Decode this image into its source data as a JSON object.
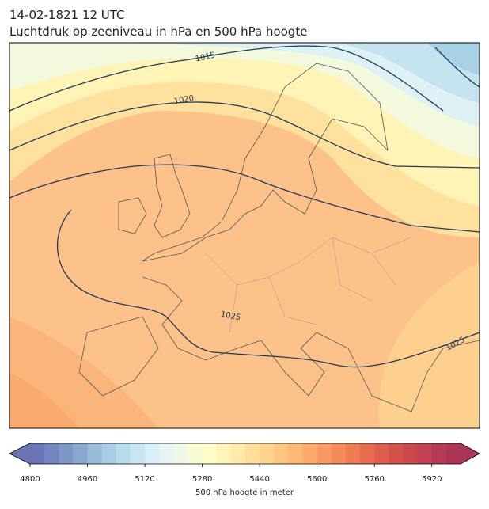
{
  "title": [
    "14-02-1821 12 UTC",
    "Luchtdruk op zeeniveau in hPa en 500 hPa hoogte"
  ],
  "map": {
    "contour_labels": [
      "1015",
      "1020",
      "1025",
      "1025"
    ]
  },
  "colorbar": {
    "lim": [
      4800,
      6000
    ],
    "ticks": [
      4800,
      4960,
      5120,
      5280,
      5440,
      5600,
      5760,
      5920
    ],
    "label": "500 hPa hoogte in meter",
    "colors": [
      "#6a74b6",
      "#7486bd",
      "#7f97c5",
      "#8aa8cd",
      "#98bbd8",
      "#a8cde4",
      "#b8dcec",
      "#c8e6f1",
      "#d8eff5",
      "#e6f5f3",
      "#eff8e4",
      "#f6fbd4",
      "#fdfcc6",
      "#fff4b8",
      "#ffeaa9",
      "#fedf9a",
      "#fed38c",
      "#fdc680",
      "#fdb874",
      "#fca96a",
      "#f89a61",
      "#f48b59",
      "#ee7b52",
      "#e66c4e",
      "#dd5e4c",
      "#d3534c",
      "#c9494d",
      "#c04150",
      "#b63a53",
      "#ac3456"
    ]
  }
}
